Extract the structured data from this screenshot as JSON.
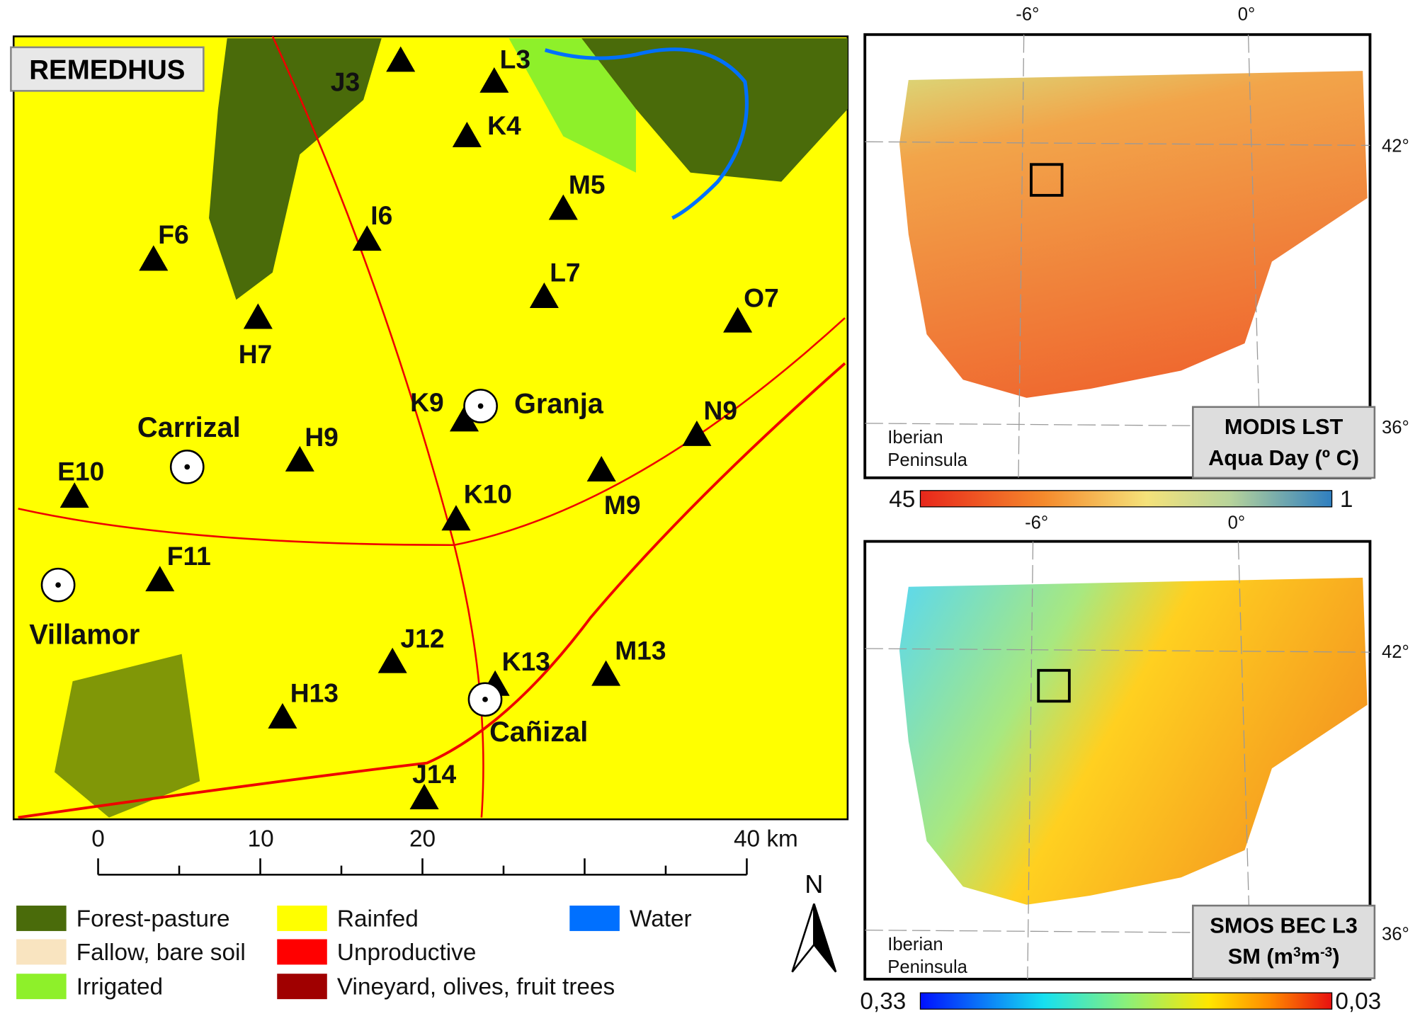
{
  "map": {
    "title": "REMEDHUS",
    "stations": [
      "J3",
      "L3",
      "K4",
      "M5",
      "I6",
      "F6",
      "L7",
      "H7",
      "O7",
      "K9",
      "N9",
      "H9",
      "E10",
      "K10",
      "M9",
      "F11",
      "J12",
      "K13",
      "M13",
      "H13",
      "J14"
    ],
    "towns": [
      "Granja",
      "Carrizal",
      "Villamor",
      "Cañizal"
    ],
    "scale_bar": {
      "labels": [
        "0",
        "10",
        "20",
        "40 km"
      ]
    },
    "north": "N",
    "legend": [
      {
        "label": "Forest-pasture",
        "color": "#4a6b0a"
      },
      {
        "label": "Fallow, bare soil",
        "color": "#f9e4c0"
      },
      {
        "label": "Irrigated",
        "color": "#8ef02a"
      },
      {
        "label": "Rainfed",
        "color": "#ffff00"
      },
      {
        "label": "Unproductive",
        "color": "#ff0000"
      },
      {
        "label": "Vineyard, olives, fruit trees",
        "color": "#a00000"
      },
      {
        "label": "Water",
        "color": "#0070ff"
      }
    ]
  },
  "insets": [
    {
      "lon_labels": [
        "-6°",
        "0°"
      ],
      "lat_labels": [
        "42°",
        "36°"
      ],
      "region": [
        "Iberian",
        "Peninsula"
      ],
      "title": [
        "MODIS LST",
        "Aqua Day (º C)"
      ],
      "colorbar": {
        "labels": [
          "45",
          "1"
        ]
      }
    },
    {
      "lon_labels": [
        "-6°",
        "0°"
      ],
      "lat_labels": [
        "42°",
        "36°"
      ],
      "region": [
        "Iberian",
        "Peninsula"
      ],
      "title": [
        "SMOS BEC L3",
        "SM  (m",
        "3",
        "m",
        "-3",
        ")"
      ],
      "colorbar": {
        "labels": [
          "0,33",
          "0,03"
        ]
      }
    }
  ]
}
